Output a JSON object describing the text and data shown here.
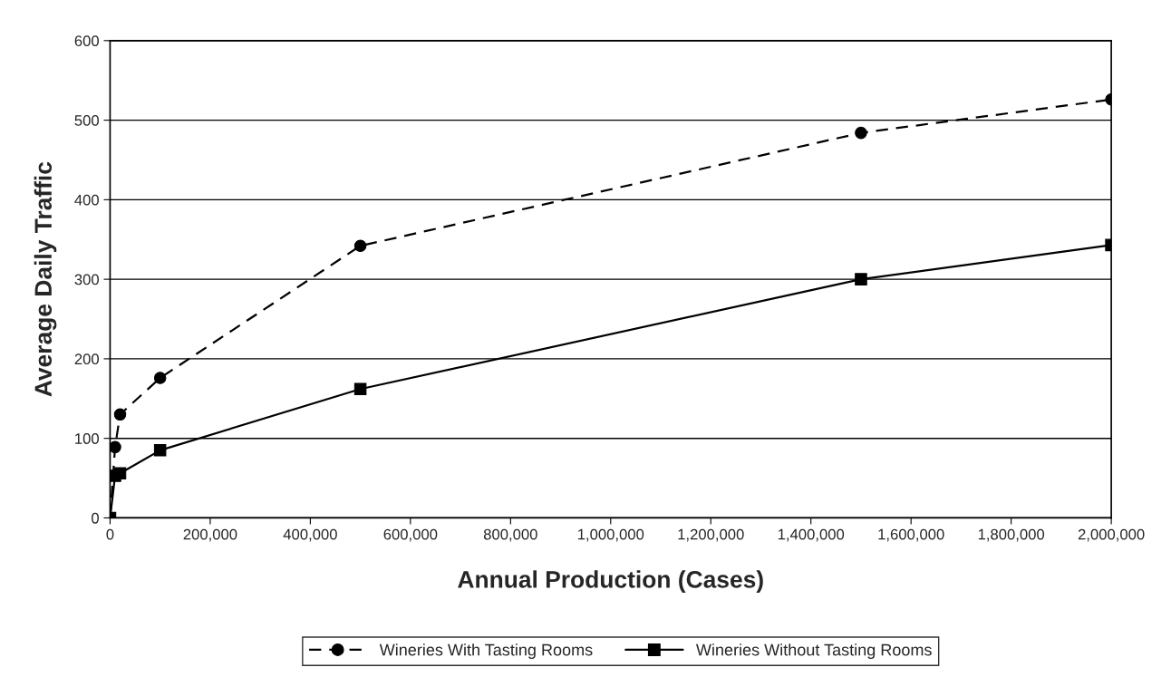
{
  "chart_data": {
    "type": "line",
    "xlabel": "Annual Production (Cases)",
    "ylabel": "Average Daily Traffic",
    "x": [
      0,
      10000,
      20000,
      100000,
      500000,
      1500000,
      2000000
    ],
    "series": [
      {
        "name": "Wineries With Tasting Rooms",
        "color": "#000000",
        "marker": "circle",
        "line_style": "dashed",
        "values": [
          0,
          89,
          130,
          176,
          342,
          484,
          526
        ]
      },
      {
        "name": "Wineries Without Tasting Rooms",
        "color": "#000000",
        "marker": "square",
        "line_style": "solid",
        "values": [
          0,
          53,
          56,
          85,
          162,
          300,
          343
        ]
      }
    ],
    "xlim": [
      0,
      2000000
    ],
    "xticks": [
      0,
      {
        "value": 200000,
        "label": "200,000"
      },
      {
        "value": 400000,
        "label": "400,000"
      },
      {
        "value": 600000,
        "label": "600,000"
      },
      {
        "value": 800000,
        "label": "800,000"
      },
      {
        "value": 1000000,
        "label": "1,000,000"
      },
      {
        "value": 1200000,
        "label": "1,200,000"
      },
      {
        "value": 1400000,
        "label": "1,400,000"
      },
      {
        "value": 1600000,
        "label": "1,600,000"
      },
      {
        "value": 1800000,
        "label": "1,800,000"
      },
      {
        "value": 2000000,
        "label": "2,000,000"
      }
    ],
    "ylim": [
      0,
      600
    ],
    "yticks": [
      0,
      100,
      200,
      300,
      400,
      500,
      600
    ],
    "grid": "y",
    "legend": "bottom"
  }
}
